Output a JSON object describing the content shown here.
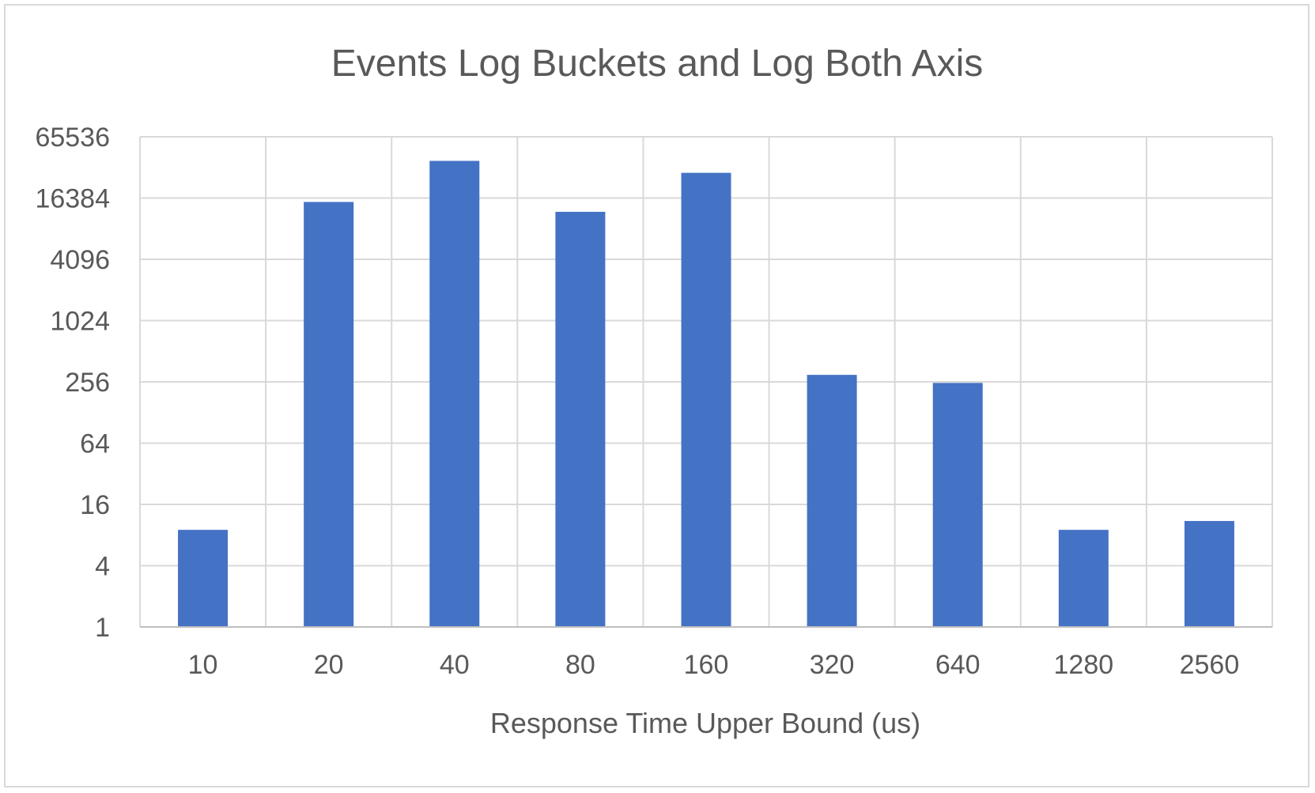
{
  "chart_data": {
    "type": "bar",
    "title": "Events Log Buckets and Log Both Axis",
    "xlabel": "Response Time Upper Bound (us)",
    "ylabel": "",
    "categories": [
      "10",
      "20",
      "40",
      "80",
      "160",
      "320",
      "640",
      "1280",
      "2560"
    ],
    "values": [
      9,
      15000,
      38000,
      12000,
      29000,
      300,
      250,
      9,
      11
    ],
    "y_scale": "log2",
    "ylim": [
      1,
      65536
    ],
    "y_ticks": [
      "1",
      "4",
      "16",
      "64",
      "256",
      "1024",
      "4096",
      "16384",
      "65536"
    ],
    "grid": true,
    "legend": "none",
    "bar_color": "#4472c4"
  }
}
